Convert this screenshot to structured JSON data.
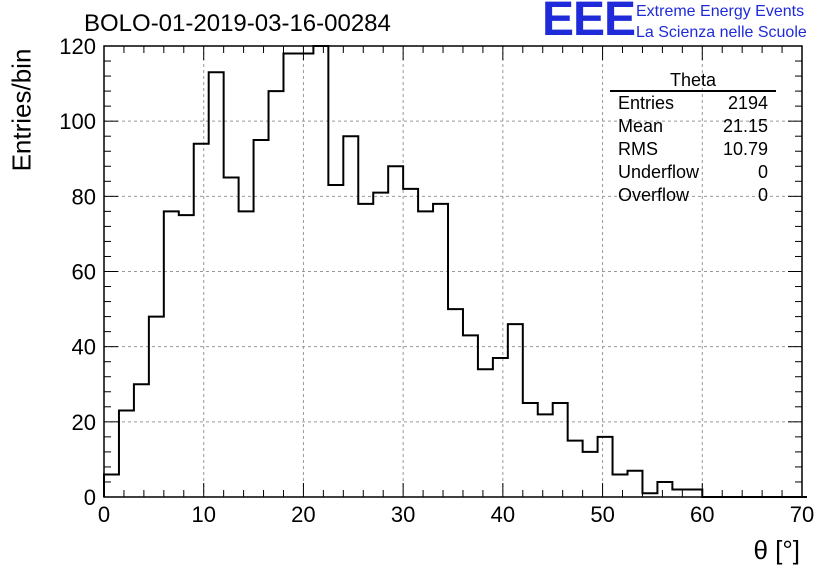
{
  "title": "BOLO-01-2019-03-16-00284",
  "logo": {
    "mark": "EEE",
    "line1": "Extreme Energy Events",
    "line2": "La Scienza nelle Scuole",
    "color": "#1f2bd8"
  },
  "stats": {
    "title": "Theta",
    "rows": [
      {
        "label": "Entries",
        "value": "2194"
      },
      {
        "label": "Mean",
        "value": "21.15"
      },
      {
        "label": "RMS",
        "value": "10.79"
      },
      {
        "label": "Underflow",
        "value": "0"
      },
      {
        "label": "Overflow",
        "value": "0"
      }
    ]
  },
  "chart_data": {
    "type": "histogram",
    "xlabel": "θ [°]",
    "ylabel": "Entries/bin",
    "xlim": [
      0,
      70
    ],
    "ylim": [
      0,
      120
    ],
    "x_ticks": [
      0,
      10,
      20,
      30,
      40,
      50,
      60,
      70
    ],
    "y_ticks": [
      0,
      20,
      40,
      60,
      80,
      100,
      120
    ],
    "grid": true,
    "bin_width": 1.5,
    "bin_edges_start": 0,
    "values": [
      6,
      23,
      30,
      48,
      76,
      75,
      94,
      113,
      85,
      76,
      95,
      108,
      118,
      118,
      120,
      83,
      96,
      78,
      81,
      88,
      82,
      76,
      78,
      50,
      43,
      34,
      37,
      46,
      25,
      22,
      25,
      15,
      12,
      16,
      6,
      7,
      1,
      4,
      2,
      2,
      0,
      0,
      0,
      0,
      0,
      0,
      0
    ],
    "line_color": "#000000"
  }
}
